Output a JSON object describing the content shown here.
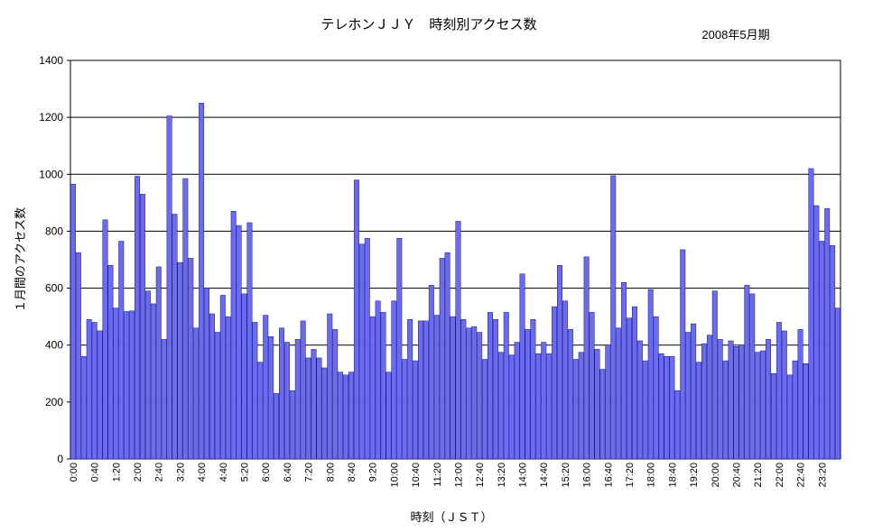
{
  "chart_data": {
    "type": "bar",
    "title": "テレホンＪＪＹ　時刻別アクセス数",
    "subtitle": "2008年5月期",
    "xlabel": "時刻（ＪＳＴ）",
    "ylabel": "１月間のアクセス数",
    "ylim": [
      0,
      1400
    ],
    "yticks": [
      "0",
      "200",
      "400",
      "600",
      "800",
      "1000",
      "1200",
      "1400"
    ],
    "grid": true,
    "bar_color": "#6b6bf0",
    "tick_labels": [
      "0:00",
      "0:40",
      "1:20",
      "2:00",
      "2:40",
      "3:20",
      "4:00",
      "4:40",
      "5:20",
      "6:00",
      "6:40",
      "7:20",
      "8:00",
      "8:40",
      "9:20",
      "10:00",
      "10:40",
      "11:20",
      "12:00",
      "12:40",
      "13:20",
      "14:00",
      "14:40",
      "15:20",
      "16:00",
      "16:40",
      "17:20",
      "18:00",
      "18:40",
      "19:20",
      "20:00",
      "20:40",
      "21:20",
      "22:00",
      "22:40",
      "23:20"
    ],
    "values": [
      965,
      725,
      360,
      490,
      480,
      450,
      840,
      680,
      530,
      765,
      518,
      520,
      993,
      930,
      590,
      545,
      675,
      420,
      1205,
      860,
      690,
      985,
      705,
      460,
      1250,
      600,
      510,
      445,
      575,
      500,
      870,
      820,
      580,
      830,
      480,
      340,
      505,
      430,
      230,
      460,
      410,
      240,
      420,
      485,
      355,
      385,
      355,
      320,
      510,
      455,
      305,
      295,
      305,
      980,
      755,
      775,
      500,
      555,
      515,
      305,
      555,
      775,
      350,
      490,
      345,
      485,
      485,
      610,
      505,
      705,
      725,
      500,
      835,
      490,
      460,
      465,
      445,
      350,
      515,
      490,
      375,
      515,
      365,
      410,
      650,
      455,
      490,
      370,
      410,
      370,
      535,
      680,
      555,
      455,
      350,
      375,
      710,
      515,
      385,
      315,
      400,
      995,
      460,
      620,
      495,
      535,
      415,
      345,
      595,
      500,
      370,
      360,
      360,
      240,
      735,
      445,
      475,
      340,
      405,
      435,
      590,
      420,
      345,
      415,
      395,
      400,
      610,
      580,
      375,
      380,
      420,
      300,
      480,
      450,
      295,
      345,
      455,
      335,
      1020,
      890,
      765,
      880,
      750,
      530
    ]
  }
}
